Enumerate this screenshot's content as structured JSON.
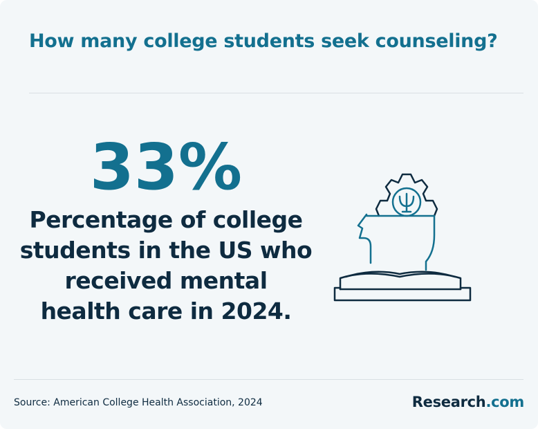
{
  "header": {
    "title": "How many college students seek counseling?"
  },
  "stat": {
    "value": "33%",
    "description": [
      "Percentage of college",
      "students in the US who",
      "received mental",
      "health care in 2024."
    ]
  },
  "footer": {
    "source": "Source: American College Health Association, 2024",
    "brand": {
      "name": "Research",
      "suffix": ".com"
    }
  }
}
